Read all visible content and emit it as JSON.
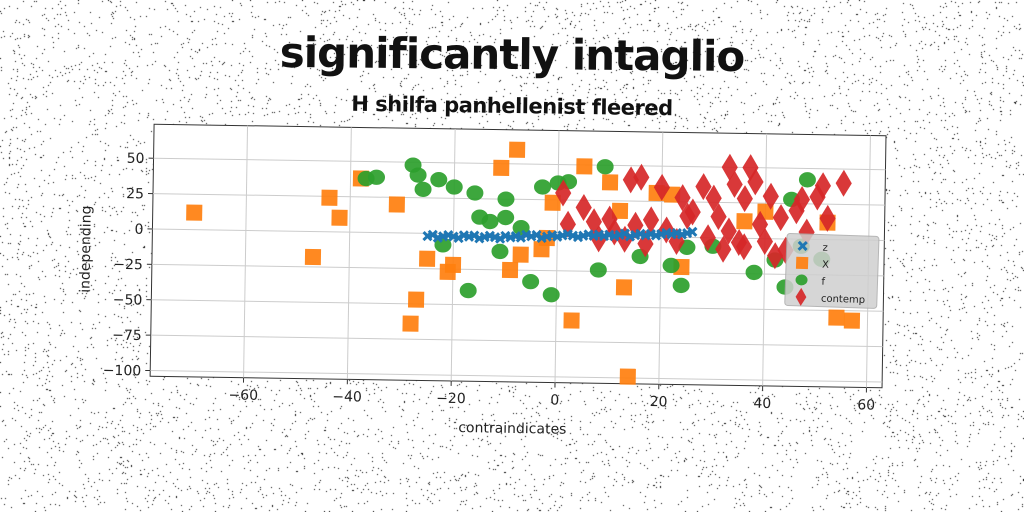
{
  "chart_data": {
    "type": "scatter",
    "title": "significantly intaglio",
    "subtitle": "H shilfa panhellenist fleered",
    "xlabel": "contraindicates",
    "ylabel": "independing",
    "xlim": [
      -78,
      63
    ],
    "ylim": [
      -104,
      74
    ],
    "xticks": [
      -60,
      -40,
      -20,
      0,
      20,
      40,
      60
    ],
    "yticks": [
      50,
      25,
      0,
      -25,
      -50,
      -75,
      -100
    ],
    "grid": true,
    "legend_position": "right",
    "series": [
      {
        "name": "z",
        "marker": "x",
        "color": "#1f77b4",
        "points": [
          [
            -25,
            -2
          ],
          [
            -24,
            -1
          ],
          [
            -23,
            -3
          ],
          [
            -22,
            -2
          ],
          [
            -21,
            -1
          ],
          [
            -20,
            -2
          ],
          [
            -19,
            -3
          ],
          [
            -18,
            -1
          ],
          [
            -17,
            -2
          ],
          [
            -16,
            -1
          ],
          [
            -15,
            -3
          ],
          [
            -14,
            -2
          ],
          [
            -13,
            -1
          ],
          [
            -12,
            -2
          ],
          [
            -11,
            -3
          ],
          [
            -10,
            -1
          ],
          [
            -9,
            -2
          ],
          [
            -8,
            -1
          ],
          [
            -7,
            -2
          ],
          [
            -6,
            0
          ],
          [
            -5,
            -1
          ],
          [
            -4,
            0
          ],
          [
            -3,
            -2
          ],
          [
            -2,
            -1
          ],
          [
            -1,
            0
          ],
          [
            0,
            -1
          ],
          [
            1,
            0
          ],
          [
            2,
            1
          ],
          [
            3,
            0
          ],
          [
            4,
            -1
          ],
          [
            5,
            0
          ],
          [
            6,
            1
          ],
          [
            7,
            0
          ],
          [
            8,
            1
          ],
          [
            9,
            0
          ],
          [
            10,
            1
          ],
          [
            11,
            0
          ],
          [
            12,
            1
          ],
          [
            13,
            2
          ],
          [
            14,
            0
          ],
          [
            15,
            1
          ],
          [
            16,
            2
          ],
          [
            17,
            1
          ],
          [
            18,
            2
          ],
          [
            19,
            1
          ],
          [
            20,
            2
          ],
          [
            21,
            3
          ],
          [
            22,
            2
          ],
          [
            23,
            3
          ],
          [
            24,
            2
          ],
          [
            25,
            3
          ],
          [
            26,
            4
          ]
        ]
      },
      {
        "name": "X",
        "marker": "s",
        "color": "#ff7f0e",
        "points": [
          [
            -70,
            12
          ],
          [
            -47,
            -18
          ],
          [
            -44,
            24
          ],
          [
            -42,
            10
          ],
          [
            -38,
            38
          ],
          [
            -31,
            20
          ],
          [
            -28,
            -64
          ],
          [
            -27,
            -47
          ],
          [
            -25,
            -18
          ],
          [
            -21,
            -27
          ],
          [
            -20,
            -22
          ],
          [
            -11,
            47
          ],
          [
            -9,
            -25
          ],
          [
            -8,
            60
          ],
          [
            -7,
            -14
          ],
          [
            -2,
            -2
          ],
          [
            -1,
            23
          ],
          [
            3,
            -60
          ],
          [
            5,
            49
          ],
          [
            10,
            38
          ],
          [
            12,
            18
          ],
          [
            13,
            -36
          ],
          [
            14,
            -99
          ],
          [
            19,
            31
          ],
          [
            24,
            -21
          ],
          [
            36,
            12
          ],
          [
            40,
            19
          ],
          [
            52,
            12
          ],
          [
            54,
            -55
          ],
          [
            57,
            -57
          ],
          [
            22,
            30
          ],
          [
            -3,
            -10
          ]
        ]
      },
      {
        "name": "f",
        "marker": "o",
        "color": "#2ca02c",
        "points": [
          [
            -37,
            38
          ],
          [
            -35,
            39
          ],
          [
            -28,
            48
          ],
          [
            -27,
            41
          ],
          [
            -26,
            31
          ],
          [
            -23,
            38
          ],
          [
            -22,
            -8
          ],
          [
            -20,
            33
          ],
          [
            -17,
            -40
          ],
          [
            -16,
            29
          ],
          [
            -15,
            12
          ],
          [
            -13,
            9
          ],
          [
            -11,
            -12
          ],
          [
            -10,
            12
          ],
          [
            -10,
            25
          ],
          [
            -7,
            5
          ],
          [
            -5,
            -33
          ],
          [
            -3,
            34
          ],
          [
            -1,
            -42
          ],
          [
            0,
            37
          ],
          [
            2,
            38
          ],
          [
            8,
            -24
          ],
          [
            9,
            49
          ],
          [
            16,
            -14
          ],
          [
            22,
            -20
          ],
          [
            25,
            -7
          ],
          [
            24,
            -34
          ],
          [
            30,
            -6
          ],
          [
            38,
            -24
          ],
          [
            42,
            -15
          ],
          [
            44,
            -34
          ],
          [
            45,
            28
          ],
          [
            47,
            -5
          ],
          [
            48,
            42
          ],
          [
            51,
            -14
          ]
        ]
      },
      {
        "name": "contemp",
        "marker": "d",
        "color": "#d62728",
        "points": [
          [
            1,
            30
          ],
          [
            2,
            8
          ],
          [
            5,
            20
          ],
          [
            7,
            10
          ],
          [
            8,
            -2
          ],
          [
            10,
            12
          ],
          [
            11,
            3
          ],
          [
            13,
            -2
          ],
          [
            14,
            40
          ],
          [
            15,
            8
          ],
          [
            16,
            42
          ],
          [
            17,
            -5
          ],
          [
            18,
            12
          ],
          [
            20,
            35
          ],
          [
            21,
            5
          ],
          [
            23,
            -3
          ],
          [
            24,
            28
          ],
          [
            25,
            15
          ],
          [
            26,
            18
          ],
          [
            28,
            36
          ],
          [
            30,
            28
          ],
          [
            31,
            15
          ],
          [
            32,
            -8
          ],
          [
            33,
            50
          ],
          [
            34,
            38
          ],
          [
            35,
            -3
          ],
          [
            36,
            28
          ],
          [
            37,
            50
          ],
          [
            38,
            40
          ],
          [
            39,
            10
          ],
          [
            40,
            -2
          ],
          [
            41,
            30
          ],
          [
            42,
            -12
          ],
          [
            43,
            15
          ],
          [
            44,
            -8
          ],
          [
            46,
            20
          ],
          [
            47,
            28
          ],
          [
            48,
            5
          ],
          [
            50,
            30
          ],
          [
            51,
            38
          ],
          [
            52,
            15
          ],
          [
            55,
            40
          ],
          [
            33,
            5
          ],
          [
            29,
            0
          ],
          [
            36,
            -6
          ]
        ]
      }
    ]
  }
}
